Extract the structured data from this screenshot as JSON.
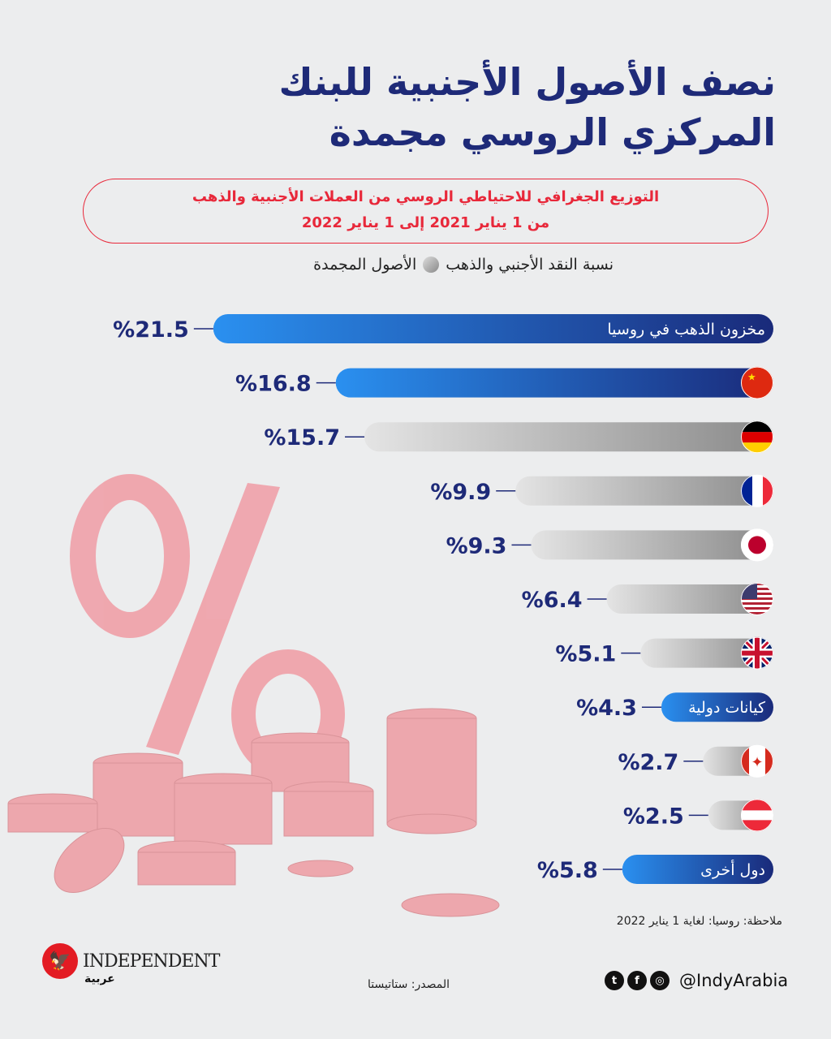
{
  "title": {
    "line1": "نصف الأصول الأجنبية للبنك",
    "line2": "المركزي الروسي مجمدة"
  },
  "subtitle": {
    "line1": "التوزيع الجغرافي للاحتياطي الروسي من العملات الأجنبية والذهب",
    "line2": "من 1 يناير 2021 إلى 1 يناير 2022"
  },
  "legend": {
    "label_before": "نسبة النقد الأجنبي والذهب",
    "label_after": "الأصول المجمدة"
  },
  "chart_data": {
    "type": "bar",
    "title": "التوزيع الجغرافي للاحتياطي الروسي من العملات الأجنبية والذهب",
    "categories": [
      "مخزون الذهب في روسيا",
      "China",
      "Germany",
      "France",
      "Japan",
      "USA",
      "UK",
      "كيانات دولية",
      "Canada",
      "Austria",
      "دول أخرى"
    ],
    "values": [
      21.5,
      16.8,
      15.7,
      9.9,
      9.3,
      6.4,
      5.1,
      4.3,
      2.7,
      2.5,
      5.8
    ],
    "value_labels": [
      "%21.5",
      "%16.8",
      "%15.7",
      "%9.9",
      "%9.3",
      "%6.4",
      "%5.1",
      "%4.3",
      "%2.7",
      "%2.5",
      "%5.8"
    ],
    "frozen": [
      false,
      false,
      true,
      true,
      true,
      true,
      true,
      false,
      true,
      true,
      false
    ],
    "flags": [
      "none",
      "cn",
      "de",
      "fr",
      "jp",
      "us",
      "gb",
      "none",
      "ca",
      "at",
      "none"
    ],
    "text_bars": [
      0,
      7,
      10
    ],
    "unit": "%",
    "colors": {
      "not_frozen": "#1a73e0",
      "frozen": "#b8b8b8",
      "label": "#1e2a78"
    }
  },
  "note": "ملاحظة: روسيا: لغاية 1 يناير 2022",
  "source": "المصدر: ستاتيستا",
  "footer": {
    "handle": "@IndyArabia",
    "brand": "INDEPENDENT",
    "brand_ar": "عربية",
    "social": [
      "twitter-icon",
      "facebook-icon",
      "instagram-icon"
    ]
  }
}
